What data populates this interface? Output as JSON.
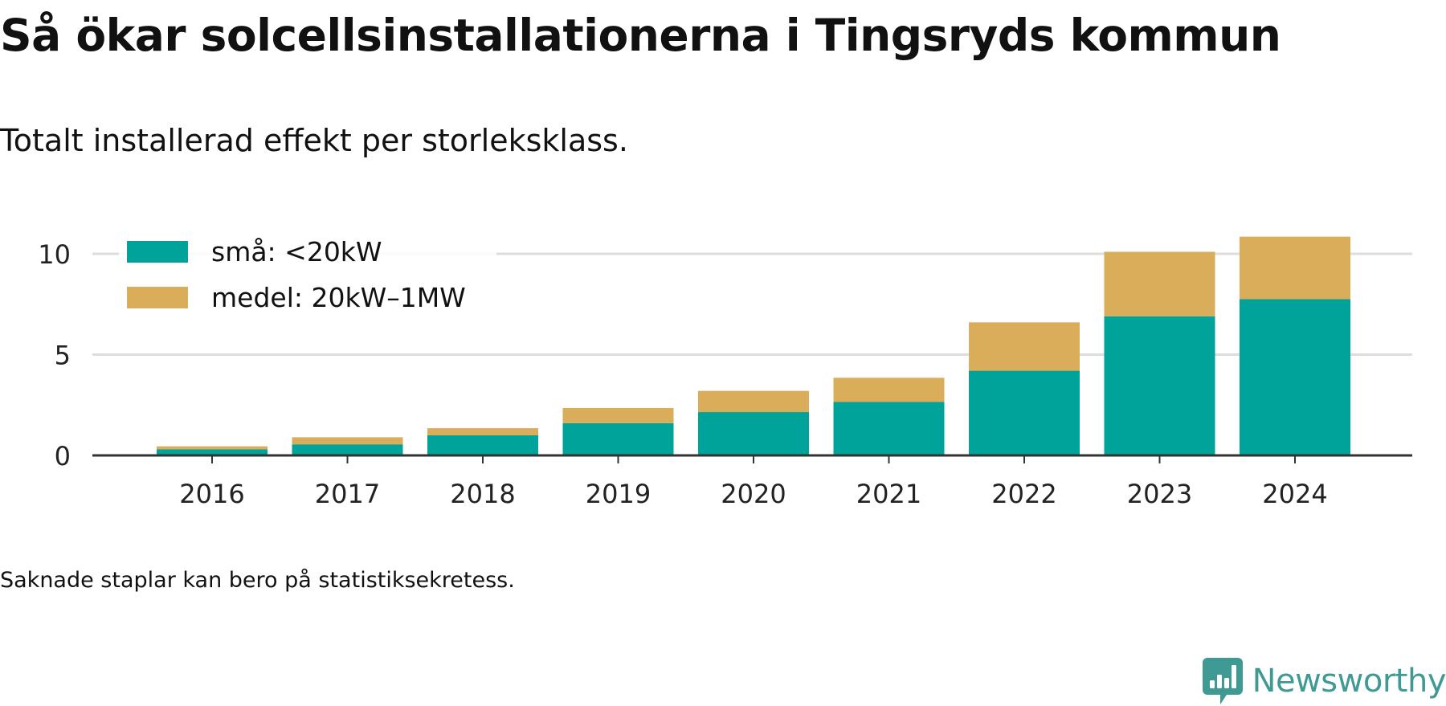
{
  "title": "Så ökar solcellsinstallationerna i Tingsryds kommun",
  "subtitle": "Totalt installerad effekt per storleksklass.",
  "footnote": "Saknade staplar kan bero på statistiksekretess.",
  "brand": "Newsworthy",
  "colors": {
    "small": "#00a39a",
    "medium": "#d9ad5a",
    "grid": "#dddddd",
    "axis": "#333333",
    "brand": "#3f9a94"
  },
  "chart_data": {
    "type": "bar",
    "stacked": true,
    "categories": [
      "2016",
      "2017",
      "2018",
      "2019",
      "2020",
      "2021",
      "2022",
      "2023",
      "2024"
    ],
    "series": [
      {
        "name": "små: <20kW",
        "values": [
          0.3,
          0.55,
          1.0,
          1.6,
          2.15,
          2.65,
          4.2,
          6.9,
          7.75
        ]
      },
      {
        "name": "medel: 20kW–1MW",
        "values": [
          0.15,
          0.35,
          0.35,
          0.75,
          1.05,
          1.2,
          2.4,
          3.2,
          3.1
        ]
      }
    ],
    "yticks": [
      0,
      5,
      10
    ],
    "ylim": [
      0,
      11
    ],
    "xlabel": "",
    "ylabel": "",
    "grid": true,
    "legend": "top-left"
  }
}
